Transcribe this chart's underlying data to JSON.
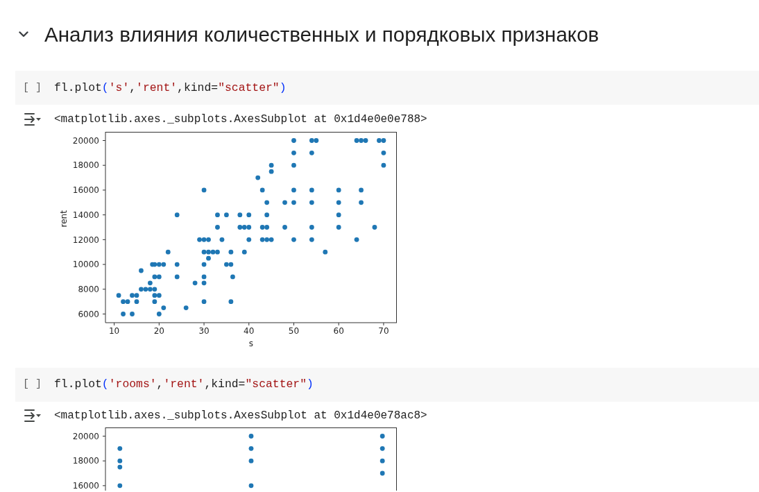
{
  "chart_data": [
    {
      "type": "scatter",
      "title": "Анализ влияния количественных и порядковых признаков",
      "annotations": [
        "[ ]",
        "fl.plot('s','rent',kind=\"scatter\")",
        "<matplotlib.axes._subplots.AxesSubplot at 0x1d4e0e0e788>"
      ],
      "xlabel": "s",
      "ylabel": "rent",
      "color": "#1f77b4",
      "marker": "circle",
      "x": [
        11,
        12,
        13,
        12,
        14,
        14,
        15,
        15,
        16,
        16,
        17,
        18,
        19,
        18,
        18.5,
        19,
        20,
        21,
        19,
        20,
        19,
        20,
        19,
        20,
        21,
        22,
        24,
        24,
        24,
        26,
        28,
        29,
        30,
        31,
        30,
        30,
        31,
        32,
        33,
        30,
        31,
        30,
        30,
        30,
        33,
        33,
        34,
        35,
        35,
        36,
        36,
        36.4,
        36,
        38,
        40,
        38,
        39,
        40,
        40,
        39,
        42,
        43,
        45,
        45,
        44,
        44,
        43,
        44,
        43,
        44,
        45,
        48,
        48,
        50,
        50,
        50,
        50,
        50,
        50,
        54,
        55,
        54,
        54,
        54,
        54,
        54,
        57,
        60,
        60,
        60,
        60,
        64,
        65,
        66,
        65,
        65,
        64,
        68,
        69,
        70,
        70,
        70
      ],
      "values": [
        7500,
        7000,
        7000,
        6000,
        7500,
        6000,
        7500,
        7000,
        9500,
        8000,
        8000,
        8000,
        8000,
        8500,
        10000,
        10000,
        10000,
        10000,
        9000,
        9000,
        7500,
        7500,
        7000,
        6000,
        6500,
        11000,
        14000,
        10000,
        9000,
        6500,
        8500,
        12000,
        12000,
        12000,
        16000,
        11000,
        11000,
        11000,
        11000,
        10000,
        10500,
        9000,
        8500,
        7000,
        14000,
        13000,
        12000,
        14000,
        10000,
        10000,
        11000,
        9000,
        7000,
        14000,
        14000,
        13000,
        13000,
        13000,
        12000,
        11000,
        17000,
        16000,
        18000,
        17500,
        15000,
        14000,
        13000,
        13000,
        12000,
        12000,
        12000,
        15000,
        13000,
        20000,
        19000,
        18000,
        16000,
        15000,
        12000,
        20000,
        20000,
        19000,
        16000,
        15000,
        13000,
        12000,
        11000,
        16000,
        15000,
        14000,
        13000,
        20000,
        20000,
        20000,
        16000,
        15000,
        12000,
        13000,
        20000,
        20000,
        19000,
        18000
      ],
      "xlim": [
        8.05,
        72.95
      ],
      "ylim": [
        5300,
        20700
      ],
      "xticks": [
        10,
        20,
        30,
        40,
        50,
        60,
        70
      ],
      "yticks": [
        6000,
        8000,
        10000,
        12000,
        14000,
        16000,
        18000,
        20000
      ]
    },
    {
      "type": "scatter",
      "annotations": [
        "[ ]",
        "fl.plot('rooms','rent',kind=\"scatter\")",
        "<matplotlib.axes._subplots.AxesSubplot at 0x1d4e0e78ac8>"
      ],
      "marker": "circle",
      "categories": [
        null,
        null,
        null
      ],
      "series": [
        {
          "color": "#1f77b4",
          "values": [
            19000,
            20000,
            20000
          ]
        },
        {
          "color": "#1f77b4",
          "values": [
            18000,
            19000,
            19000
          ]
        },
        {
          "color": "#1f77b4",
          "values": [
            17500,
            18000,
            18000
          ]
        },
        {
          "color": "#1f77b4",
          "values": [
            16000,
            16000,
            17000
          ]
        }
      ],
      "ylim": [
        15600,
        20700
      ],
      "yticks": [
        16000,
        18000,
        20000
      ],
      "tick_labels": "y"
    }
  ]
}
